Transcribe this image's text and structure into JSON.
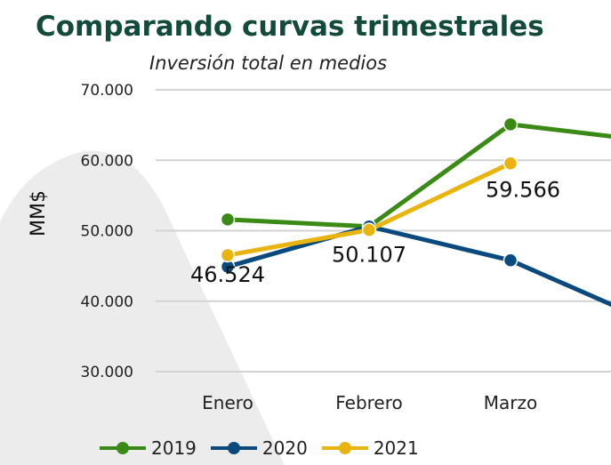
{
  "header": {
    "title": "Comparando curvas trimestrales",
    "subtitle": "Inversión total en medios"
  },
  "chart_data": {
    "type": "line",
    "title": "Comparando curvas trimestrales",
    "subtitle": "Inversión total en medios",
    "xlabel": "",
    "ylabel": "MM$",
    "categories": [
      "Enero",
      "Febrero",
      "Marzo"
    ],
    "ylim": [
      30000,
      70000
    ],
    "yticks": [
      "30.000",
      "40.000",
      "50.000",
      "60.000",
      "70.000"
    ],
    "grid": true,
    "legend_position": "bottom",
    "series": [
      {
        "name": "2019",
        "color": "#3a8a16",
        "values": [
          51600,
          50600,
          65100
        ],
        "continues_to": 62700
      },
      {
        "name": "2020",
        "color": "#0b4a7e",
        "values": [
          44900,
          50600,
          45800
        ],
        "continues_to": 37000
      },
      {
        "name": "2021",
        "color": "#e9b410",
        "values": [
          46524,
          50107,
          59566
        ],
        "data_labels": [
          "46.524",
          "50.107",
          "59.566"
        ]
      }
    ]
  }
}
